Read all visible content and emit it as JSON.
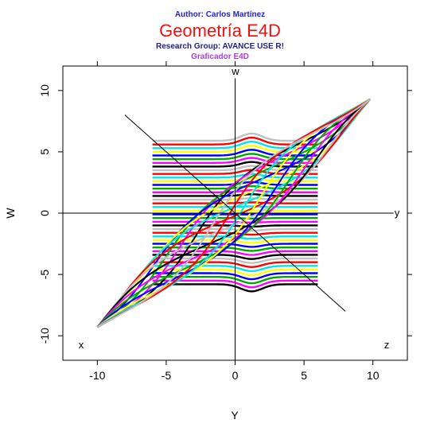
{
  "header": {
    "author": "Author: Carlos Martínez",
    "title": "Geometría E4D",
    "research_group": "Research Group: AVANCE USE R!",
    "app_name": "Graficador E4D"
  },
  "chart_data": {
    "type": "line",
    "xlabel": "Y",
    "ylabel": "W",
    "xlim": [
      -12.5,
      12.5
    ],
    "ylim": [
      -12,
      12
    ],
    "x_ticks": [
      -10,
      -5,
      0,
      5,
      10
    ],
    "y_ticks": [
      -10,
      -5,
      0,
      5,
      10
    ],
    "x_tick_labels": [
      "-10",
      "-5",
      "0",
      "5",
      "10"
    ],
    "y_tick_labels": [
      "-10",
      "-5",
      "0",
      "5",
      "10"
    ],
    "axis_labels": {
      "w": "w",
      "y": "y",
      "x": "x",
      "z": "z"
    },
    "grid": false,
    "colors": [
      "#000000",
      "#ff00ff",
      "#00aa00",
      "#0000ff",
      "#ffff00",
      "#00e5e5",
      "#ff0000",
      "#c0c0c0"
    ],
    "band_lines": {
      "y_values": [
        -5.8,
        -5.5,
        -5.2,
        -4.9,
        -4.6,
        -4.3,
        -4.0,
        -3.7,
        -3.4,
        -3.1,
        -2.8,
        -2.5,
        -2.2,
        -1.9,
        -1.6,
        -1.3,
        -1.0,
        -0.7,
        -0.4,
        -0.1,
        0.2,
        0.5,
        0.8,
        1.1,
        1.4,
        1.7,
        2.0,
        2.3,
        2.6,
        2.9,
        3.2,
        3.5,
        3.8,
        4.1,
        4.4,
        4.7,
        5.0,
        5.3,
        5.6,
        5.9
      ],
      "x_range": [
        -6,
        6
      ]
    },
    "diagonal_strands": {
      "count": 16,
      "start": [
        -10.0,
        -9.3
      ],
      "end": [
        9.8,
        9.3
      ]
    },
    "ref_axes": {
      "horizontal": {
        "y": 0,
        "x_range": [
          -12.5,
          11.5
        ]
      },
      "vertical": {
        "x": 0,
        "y_range": [
          -12,
          11
        ]
      },
      "diagonal": {
        "from": [
          -8,
          8
        ],
        "to": [
          8,
          -8
        ]
      }
    }
  }
}
